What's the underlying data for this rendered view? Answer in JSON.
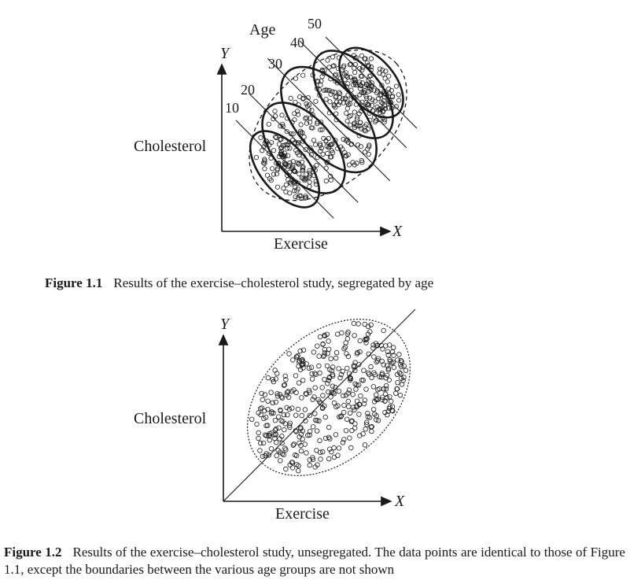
{
  "figure1": {
    "y_axis_letter": "Y",
    "x_axis_letter": "X",
    "y_axis_label": "Cholesterol",
    "x_axis_label": "Exercise",
    "age_title": "Age",
    "age_groups": [
      "10",
      "20",
      "30",
      "40",
      "50"
    ],
    "caption_number": "Figure 1.1",
    "caption_text": "Results of the exercise–cholesterol study, segregated by age"
  },
  "figure2": {
    "y_axis_letter": "Y",
    "x_axis_letter": "X",
    "y_axis_label": "Cholesterol",
    "x_axis_label": "Exercise",
    "caption_number": "Figure 1.2",
    "caption_text": "Results of the exercise–cholesterol study, unsegregated. The data points are identical to those of Figure 1.1, except the boundaries between the various age groups are not shown"
  },
  "colors": {
    "ink": "#1a1a1a",
    "paper": "#ffffff"
  }
}
